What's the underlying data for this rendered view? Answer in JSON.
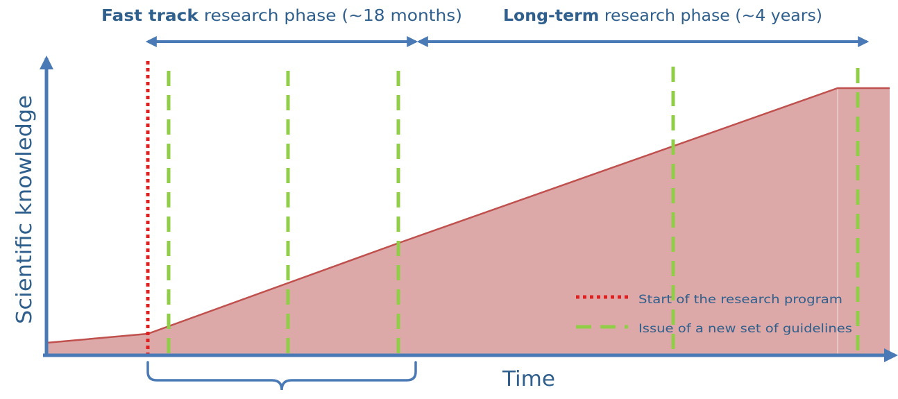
{
  "phases": {
    "fast_track": {
      "bold_text": "Fast track",
      "rest_text": " research phase (~18 months)"
    },
    "long_term": {
      "bold_text": "Long-term",
      "rest_text": " research phase (~4 years)"
    }
  },
  "axes": {
    "y_label": "Scientific knowledge",
    "x_label": "Time"
  },
  "legend": {
    "start_label": "Start of the research program",
    "guidelines_label": "Issue of a new set of guidelines"
  },
  "colors": {
    "axis": "#4a7ab5",
    "phase_arrow": "#4a7ab5",
    "text": "#2f5f8c",
    "curve": "#c0504d",
    "fill": "#dca9a8",
    "start_marker": "#e02020",
    "guideline_marker": "#8fce46"
  }
}
